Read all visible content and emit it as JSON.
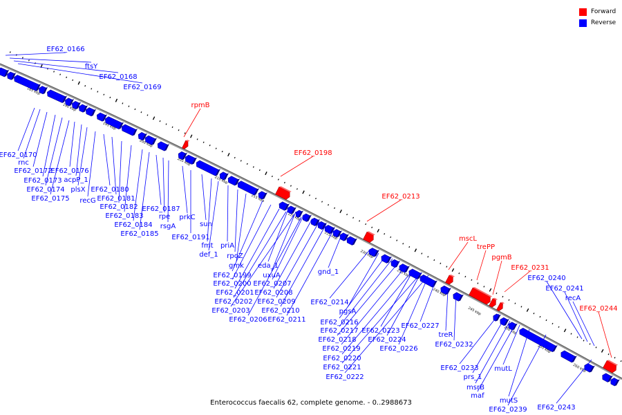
{
  "caption": "Enterococcus faecalis 62, complete genome. - 0..2988673",
  "colors": {
    "forward": "#ff0000",
    "reverse": "#0000ff",
    "line": "#808080",
    "dots": "#000000"
  },
  "legend": [
    {
      "label": "Forward",
      "color": "#ff0000"
    },
    {
      "label": "Reverse",
      "color": "#0000ff"
    }
  ],
  "ticks": [
    "185 kbp",
    "190 kbp",
    "195 kbp",
    "200 kbp",
    "205 kbp",
    "210 kbp",
    "215 kbp",
    "220 kbp",
    "225 kbp",
    "230 kbp",
    "235 kbp",
    "240 kbp",
    "245 kbp",
    "250 kbp",
    "255 kbp",
    "260 kbp"
  ],
  "forward_genes": [
    "rpmB",
    "EF62_0198",
    "EF62_0213",
    "mscL",
    "trePP",
    "pgmB",
    "EF62_0231",
    "EF62_0244"
  ],
  "reverse_genes": [
    "EF62_0166",
    "ftsY",
    "EF62_0168",
    "EF62_0169",
    "EF62_0170",
    "rnc",
    "EF62_0172",
    "EF62_0173",
    "EF62_0174",
    "EF62_0175",
    "EF62_0176",
    "acpP_1",
    "plsX",
    "recG",
    "EF62_0180",
    "EF62_0181",
    "EF62_0182",
    "EF62_0183",
    "EF62_0184",
    "EF62_0185",
    "EF62_0187",
    "rpe",
    "rsgA",
    "prkC",
    "EF62_0191",
    "sun",
    "fmt",
    "def_1",
    "priA",
    "rpoZ",
    "gmk",
    "EF62_0199",
    "EF62_0200",
    "EF62_0201",
    "EF62_0202",
    "EF62_0203",
    "EF62_0206",
    "eda_1",
    "uxuA",
    "EF62_0207",
    "EF62_0208",
    "EF62_0209",
    "EF62_0210",
    "EF62_0211",
    "gnd_1",
    "EF62_0214",
    "pgsA",
    "EF62_0216",
    "EF62_0217",
    "EF62_0218",
    "EF62_0219",
    "EF62_0220",
    "EF62_0221",
    "EF62_0222",
    "EF62_0223",
    "EF62_0224",
    "EF62_0226",
    "EF62_0227",
    "treR",
    "EF62_0232",
    "EF62_0233",
    "prs_1",
    "msrB",
    "maf",
    "mutL",
    "mutS",
    "EF62_0239",
    "EF62_0240",
    "EF62_0241",
    "recA",
    "EF62_0243"
  ]
}
